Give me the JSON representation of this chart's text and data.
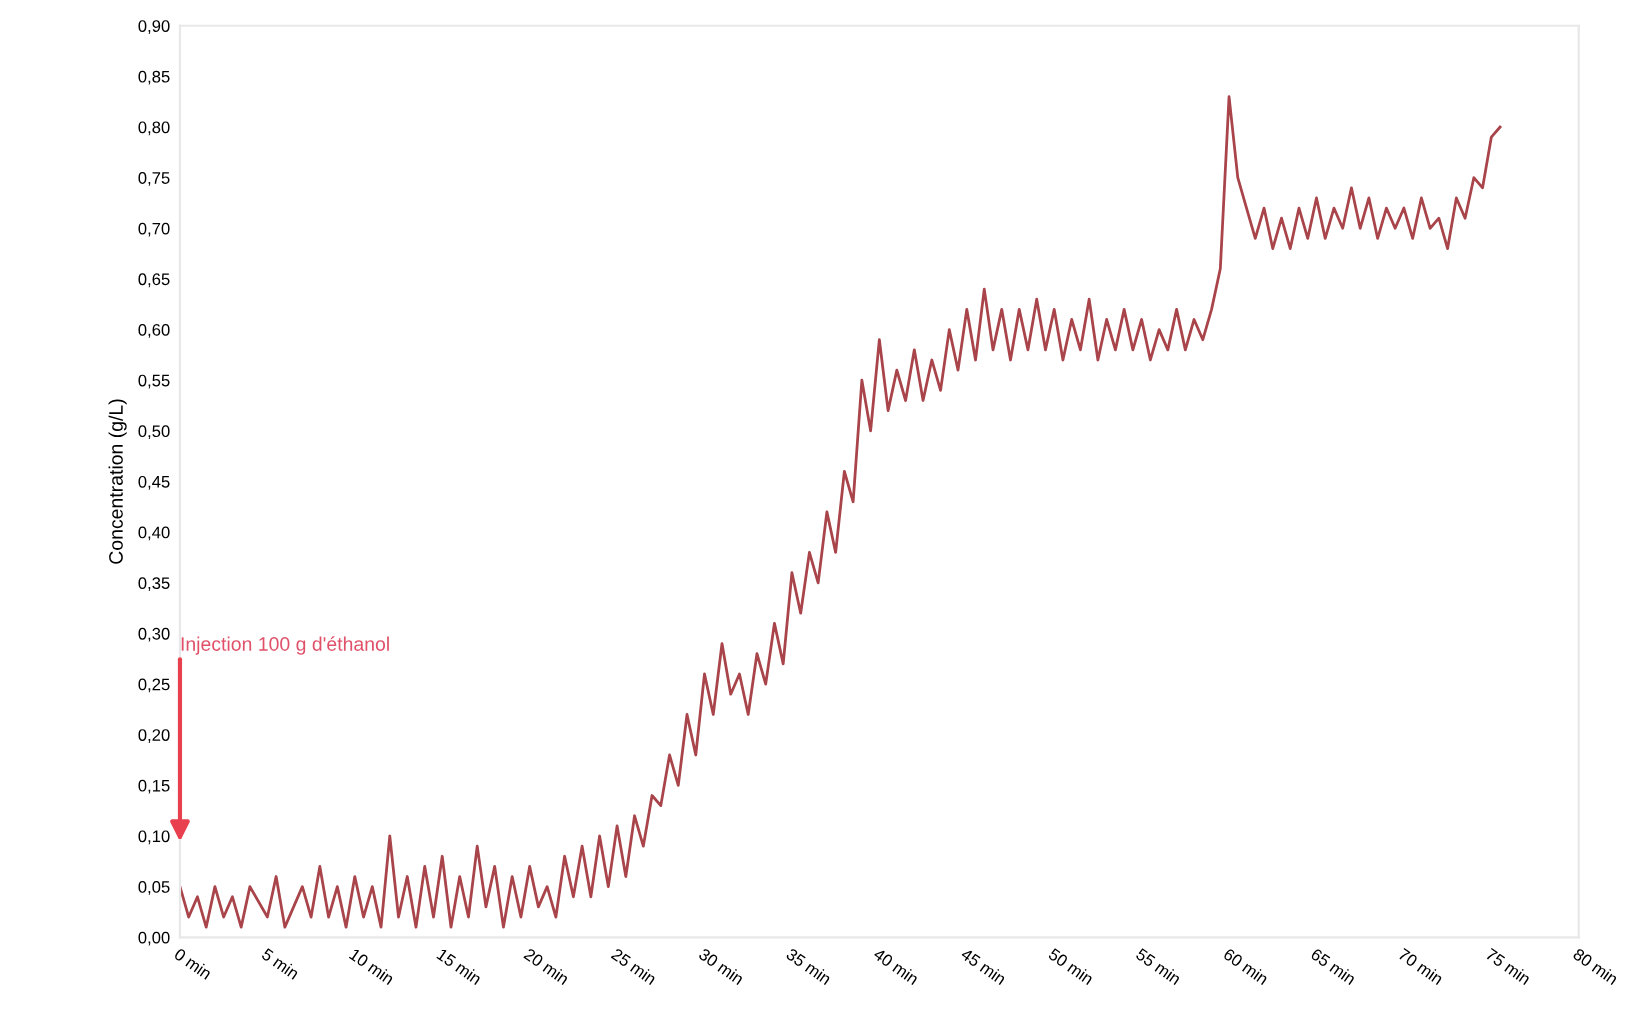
{
  "chart_data": {
    "type": "line",
    "ylabel": "Concentration (g/L)",
    "annotations": [
      "Injection 100 g d'éthanol"
    ],
    "xlim": [
      0,
      80
    ],
    "ylim": [
      0,
      0.9
    ],
    "xticks": [
      {
        "value": 0,
        "label": "0 min"
      },
      {
        "value": 5,
        "label": "5 min"
      },
      {
        "value": 10,
        "label": "10 min"
      },
      {
        "value": 15,
        "label": "15 min"
      },
      {
        "value": 20,
        "label": "20 min"
      },
      {
        "value": 25,
        "label": "25 min"
      },
      {
        "value": 30,
        "label": "30 min"
      },
      {
        "value": 35,
        "label": "35 min"
      },
      {
        "value": 40,
        "label": "40 min"
      },
      {
        "value": 45,
        "label": "45 min"
      },
      {
        "value": 50,
        "label": "50 min"
      },
      {
        "value": 55,
        "label": "55 min"
      },
      {
        "value": 60,
        "label": "60 min"
      },
      {
        "value": 65,
        "label": "65 min"
      },
      {
        "value": 70,
        "label": "70 min"
      },
      {
        "value": 75,
        "label": "75 min"
      },
      {
        "value": 80,
        "label": "80 min"
      }
    ],
    "yticks": [
      {
        "value": 0,
        "label": "0,00"
      },
      {
        "value": 0.05,
        "label": "0,05"
      },
      {
        "value": 0.1,
        "label": "0,10"
      },
      {
        "value": 0.15,
        "label": "0,15"
      },
      {
        "value": 0.2,
        "label": "0,20"
      },
      {
        "value": 0.25,
        "label": "0,25"
      },
      {
        "value": 0.3,
        "label": "0,30"
      },
      {
        "value": 0.35,
        "label": "0,35"
      },
      {
        "value": 0.4,
        "label": "0,40"
      },
      {
        "value": 0.45,
        "label": "0,45"
      },
      {
        "value": 0.5,
        "label": "0,50"
      },
      {
        "value": 0.55,
        "label": "0,55"
      },
      {
        "value": 0.6,
        "label": "0,60"
      },
      {
        "value": 0.65,
        "label": "0,65"
      },
      {
        "value": 0.7,
        "label": "0,70"
      },
      {
        "value": 0.75,
        "label": "0,75"
      },
      {
        "value": 0.8,
        "label": "0,80"
      },
      {
        "value": 0.85,
        "label": "0,85"
      },
      {
        "value": 0.9,
        "label": "0,90"
      }
    ],
    "grid": false,
    "legend": false,
    "marker": "none",
    "line_style": "solid",
    "series": [
      {
        "color": "#a8444a",
        "x": [
          0,
          0.5,
          1,
          1.5,
          2,
          2.5,
          3,
          3.5,
          4,
          5,
          5.5,
          6,
          7,
          7.5,
          8,
          8.5,
          9,
          9.5,
          10,
          10.5,
          11,
          11.5,
          12,
          12.5,
          13,
          13.5,
          14,
          14.5,
          15,
          15.5,
          16,
          16.5,
          17,
          17.5,
          18,
          18.5,
          19,
          19.5,
          20,
          20.5,
          21,
          21.5,
          22,
          22.5,
          23,
          23.5,
          24,
          24.5,
          25,
          25.5,
          26,
          26.5,
          27,
          27.5,
          28,
          28.5,
          29,
          29.5,
          30,
          30.5,
          31,
          31.5,
          32,
          32.5,
          33,
          33.5,
          34,
          34.5,
          35,
          35.5,
          36,
          36.5,
          37,
          37.5,
          38,
          38.5,
          39,
          39.5,
          40,
          40.5,
          41,
          41.5,
          42,
          42.5,
          43,
          43.5,
          44,
          44.5,
          45,
          45.5,
          46,
          46.5,
          47,
          47.5,
          48,
          48.5,
          49,
          49.5,
          50,
          50.5,
          51,
          51.5,
          52,
          52.5,
          53,
          53.5,
          54,
          54.5,
          55,
          55.5,
          56,
          56.5,
          57,
          57.5,
          58,
          58.5,
          59,
          59.5,
          60,
          60.5,
          61,
          61.5,
          62,
          62.5,
          63,
          63.5,
          64,
          64.5,
          65,
          65.5,
          66,
          66.5,
          67,
          67.5,
          68,
          68.5,
          69,
          69.5,
          70,
          70.5,
          71,
          71.5,
          72,
          72.5,
          73,
          73.5,
          74,
          74.5,
          75,
          75.5
        ],
        "values": [
          0.05,
          0.02,
          0.04,
          0.01,
          0.05,
          0.02,
          0.04,
          0.01,
          0.05,
          0.02,
          0.06,
          0.01,
          0.05,
          0.02,
          0.07,
          0.02,
          0.05,
          0.01,
          0.06,
          0.02,
          0.05,
          0.01,
          0.1,
          0.02,
          0.06,
          0.01,
          0.07,
          0.02,
          0.08,
          0.01,
          0.06,
          0.02,
          0.09,
          0.03,
          0.07,
          0.01,
          0.06,
          0.02,
          0.07,
          0.03,
          0.05,
          0.02,
          0.08,
          0.04,
          0.09,
          0.04,
          0.1,
          0.05,
          0.11,
          0.06,
          0.12,
          0.09,
          0.14,
          0.13,
          0.18,
          0.15,
          0.22,
          0.18,
          0.26,
          0.22,
          0.29,
          0.24,
          0.26,
          0.22,
          0.28,
          0.25,
          0.31,
          0.27,
          0.36,
          0.32,
          0.38,
          0.35,
          0.42,
          0.38,
          0.46,
          0.43,
          0.55,
          0.5,
          0.59,
          0.52,
          0.56,
          0.53,
          0.58,
          0.53,
          0.57,
          0.54,
          0.6,
          0.56,
          0.62,
          0.57,
          0.64,
          0.58,
          0.62,
          0.57,
          0.62,
          0.58,
          0.63,
          0.58,
          0.62,
          0.57,
          0.61,
          0.58,
          0.63,
          0.57,
          0.61,
          0.58,
          0.62,
          0.58,
          0.61,
          0.57,
          0.6,
          0.58,
          0.62,
          0.58,
          0.61,
          0.59,
          0.62,
          0.66,
          0.83,
          0.75,
          0.72,
          0.69,
          0.72,
          0.68,
          0.71,
          0.68,
          0.72,
          0.69,
          0.73,
          0.69,
          0.72,
          0.7,
          0.74,
          0.7,
          0.73,
          0.69,
          0.72,
          0.7,
          0.72,
          0.69,
          0.73,
          0.7,
          0.71,
          0.68,
          0.73,
          0.71,
          0.75,
          0.74,
          0.79,
          0.8
        ]
      }
    ]
  }
}
